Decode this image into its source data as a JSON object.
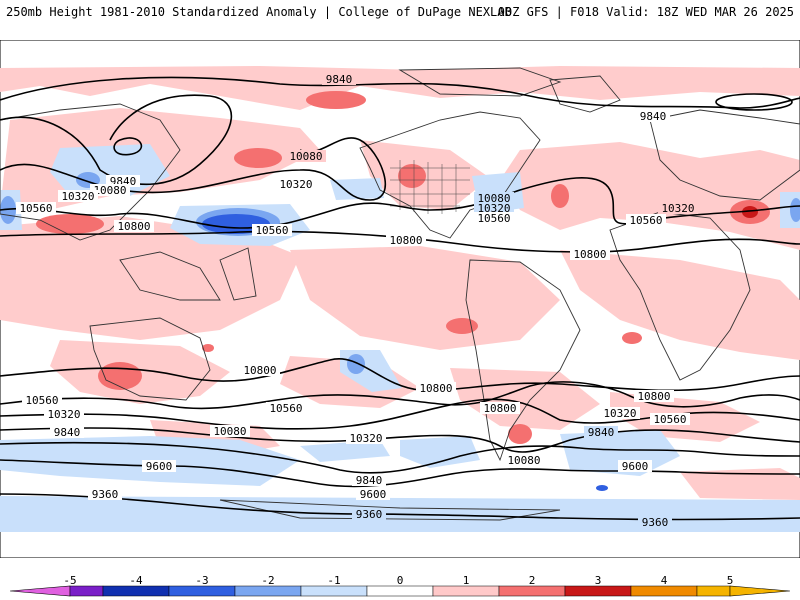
{
  "header": {
    "title": "250mb Height 1981-2010 Standardized Anomaly | College of DuPage NEXLAB",
    "run_info": "00Z GFS | F018 Valid: 18Z WED MAR 26 2025"
  },
  "contour_labels": {
    "l1": "9840",
    "l2": "9840",
    "l3": "9840",
    "l4": "10080",
    "l5": "10320",
    "l6": "10560",
    "l7": "10800",
    "l8": "10080",
    "l9": "10320",
    "l10": "10560",
    "l11": "10800",
    "l12": "10080",
    "l13": "10320",
    "l14": "10560",
    "l15": "10800",
    "l16": "10320",
    "l17": "10560",
    "l18": "10800",
    "l19": "10800",
    "l20": "10560",
    "l21": "10320",
    "l22": "9840",
    "l23": "10080",
    "l24": "10320",
    "l25": "10800",
    "l26": "10560",
    "l27": "10080",
    "l28": "9600",
    "l29": "9840",
    "l30": "9600",
    "l31": "9360",
    "l32": "9360",
    "l33": "9360",
    "l34": "10800",
    "l35": "10320",
    "l36": "10560",
    "l37": "9840",
    "l38": "9600"
  },
  "colorbar": {
    "ticks": [
      "-5",
      "-4",
      "-3",
      "-2",
      "-1",
      "0",
      "1",
      "2",
      "3",
      "4",
      "5"
    ],
    "colors": {
      "m5": "#e060e0",
      "m45": "#7a1fc8",
      "m4": "#1030b0",
      "m3": "#2f5fe0",
      "m2": "#7aa6f0",
      "m1": "#c9e0fb",
      "zero": "#ffffff",
      "p1": "#ffc9c9",
      "p2": "#f47070",
      "p3": "#c81818",
      "p4": "#f08a00",
      "p45": "#f5b400"
    }
  }
}
